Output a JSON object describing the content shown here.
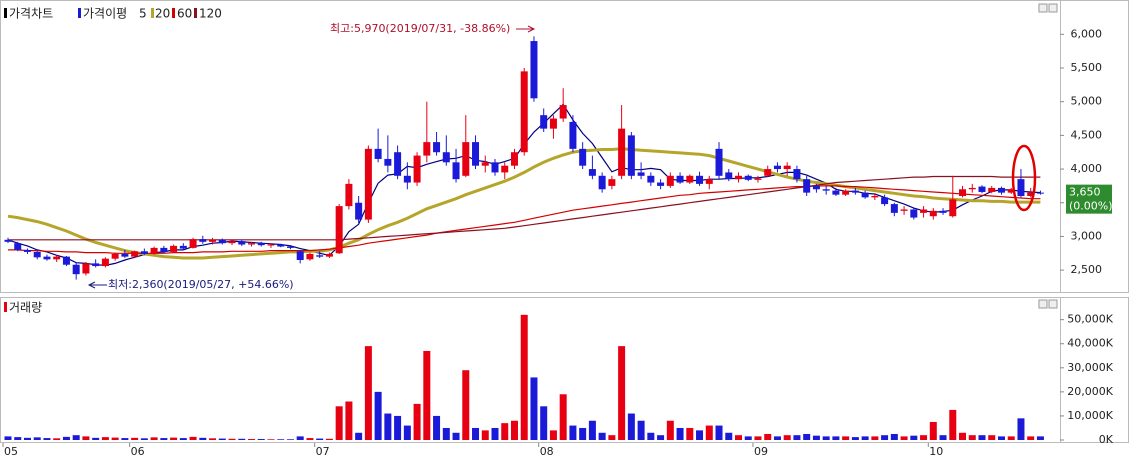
{
  "chart_data": [
    {
      "type": "candlestick",
      "title": "가격차트",
      "up_color": "#e60012",
      "down_color": "#1a1ad8",
      "open": [
        2950,
        2900,
        2800,
        2770,
        2700,
        2660,
        2700,
        2580,
        2450,
        2600,
        2560,
        2670,
        2740,
        2700,
        2780,
        2740,
        2830,
        2770,
        2860,
        2830,
        2960,
        2920,
        2950,
        2900,
        2930,
        2880,
        2900,
        2870,
        2880,
        2850,
        2780,
        2660,
        2720,
        2700,
        2750,
        3450,
        3500,
        3250,
        4300,
        4150,
        4250,
        3900,
        3800,
        4200,
        4400,
        4250,
        4100,
        3900,
        4400,
        4050,
        4100,
        3950,
        4050,
        4250,
        5900,
        4800,
        4600,
        4750,
        4700,
        4300,
        4000,
        3900,
        3750,
        3900,
        4500,
        3950,
        3900,
        3800,
        3750,
        3900,
        3800,
        3900,
        3780,
        4300,
        3950,
        3850,
        3900,
        3840,
        3900,
        4050,
        4000,
        4000,
        3850,
        3750,
        3700,
        3680,
        3620,
        3680,
        3650,
        3580,
        3580,
        3480,
        3380,
        3400,
        3350,
        3300,
        3380,
        3300,
        3600,
        3700,
        3740,
        3660,
        3720,
        3650,
        3850,
        3600,
        3650
      ],
      "high": [
        2980,
        2920,
        2820,
        2790,
        2730,
        2720,
        2710,
        2620,
        2620,
        2660,
        2690,
        2760,
        2800,
        2790,
        2820,
        2850,
        2860,
        2880,
        2900,
        2980,
        3010,
        2980,
        2970,
        2950,
        2950,
        2920,
        2920,
        2900,
        2890,
        2870,
        2800,
        2760,
        2780,
        2760,
        3480,
        3850,
        3600,
        4350,
        4600,
        4500,
        4350,
        4100,
        4250,
        5000,
        4550,
        4500,
        4300,
        4800,
        4500,
        4200,
        4150,
        4100,
        4300,
        5500,
        5970,
        4900,
        4800,
        5200,
        4800,
        4400,
        4200,
        3950,
        3900,
        4950,
        4550,
        4100,
        3950,
        3850,
        3950,
        3950,
        3920,
        3960,
        3900,
        4400,
        4000,
        3950,
        3920,
        3900,
        4050,
        4100,
        4100,
        4050,
        3900,
        3780,
        3750,
        3720,
        3700,
        3720,
        3680,
        3640,
        3620,
        3500,
        3450,
        3420,
        3450,
        3420,
        3420,
        3900,
        3750,
        3780,
        3760,
        3750,
        3740,
        3720,
        4000,
        3720,
        3680
      ],
      "low": [
        2900,
        2780,
        2740,
        2660,
        2640,
        2620,
        2560,
        2360,
        2420,
        2540,
        2540,
        2640,
        2680,
        2680,
        2720,
        2730,
        2750,
        2760,
        2800,
        2820,
        2890,
        2880,
        2880,
        2870,
        2860,
        2850,
        2850,
        2830,
        2840,
        2810,
        2600,
        2640,
        2680,
        2680,
        2740,
        3400,
        3200,
        3200,
        4100,
        3950,
        3850,
        3700,
        3750,
        4100,
        4200,
        4050,
        3800,
        3880,
        4000,
        3950,
        3900,
        3850,
        4000,
        4200,
        5000,
        4550,
        4450,
        4700,
        4250,
        4000,
        3850,
        3650,
        3700,
        3850,
        3850,
        3850,
        3750,
        3700,
        3720,
        3780,
        3780,
        3750,
        3700,
        3850,
        3820,
        3800,
        3820,
        3800,
        3880,
        3950,
        3900,
        3800,
        3600,
        3650,
        3620,
        3600,
        3600,
        3620,
        3560,
        3540,
        3450,
        3300,
        3320,
        3250,
        3280,
        3250,
        3320,
        3280,
        3580,
        3650,
        3640,
        3640,
        3620,
        3630,
        3580,
        3580,
        3620
      ],
      "close": [
        2920,
        2800,
        2770,
        2690,
        2660,
        2700,
        2580,
        2440,
        2600,
        2560,
        2670,
        2740,
        2700,
        2780,
        2740,
        2830,
        2770,
        2860,
        2820,
        2960,
        2920,
        2950,
        2900,
        2930,
        2880,
        2900,
        2870,
        2880,
        2850,
        2830,
        2650,
        2740,
        2700,
        2740,
        3450,
        3780,
        3250,
        4300,
        4150,
        4050,
        3900,
        3800,
        4200,
        4400,
        4250,
        4100,
        3850,
        4400,
        4050,
        4100,
        3950,
        4050,
        4250,
        5450,
        5050,
        4600,
        4750,
        4950,
        4300,
        4050,
        3900,
        3700,
        3850,
        4600,
        3900,
        3900,
        3800,
        3750,
        3900,
        3800,
        3900,
        3780,
        3850,
        3900,
        3850,
        3900,
        3840,
        3860,
        4000,
        4000,
        4050,
        3850,
        3650,
        3700,
        3680,
        3620,
        3680,
        3650,
        3580,
        3600,
        3480,
        3350,
        3400,
        3280,
        3400,
        3380,
        3350,
        3550,
        3700,
        3720,
        3660,
        3720,
        3650,
        3700,
        3600,
        3650,
        3650
      ],
      "moving_averages": {
        "title": "가격이평",
        "series": [
          {
            "name": "5",
            "color": "#00007f",
            "values": [
              2950,
              2900,
              2860,
              2800,
              2770,
              2720,
              2680,
              2610,
              2600,
              2580,
              2570,
              2600,
              2650,
              2690,
              2730,
              2760,
              2770,
              2800,
              2800,
              2850,
              2870,
              2900,
              2910,
              2930,
              2920,
              2910,
              2900,
              2890,
              2880,
              2860,
              2820,
              2790,
              2750,
              2720,
              2860,
              3070,
              3180,
              3500,
              3790,
              3910,
              3930,
              4040,
              4020,
              4070,
              4110,
              4150,
              4160,
              4200,
              4130,
              4110,
              4070,
              4110,
              4160,
              4370,
              4550,
              4680,
              4820,
              4960,
              4730,
              4530,
              4380,
              4170,
              3960,
              4020,
              3990,
              3990,
              4010,
              3990,
              3850,
              3830,
              3830,
              3830,
              3850,
              3850,
              3860,
              3860,
              3870,
              3870,
              3890,
              3920,
              3950,
              3950,
              3910,
              3850,
              3790,
              3700,
              3670,
              3670,
              3640,
              3630,
              3580,
              3530,
              3480,
              3420,
              3380,
              3360,
              3370,
              3390,
              3470,
              3540,
              3600,
              3670,
              3690,
              3690,
              3670,
              3660,
              3650
            ]
          },
          {
            "name": "20",
            "color": "#b5a52a",
            "values": [
              3300,
              3280,
              3250,
              3220,
              3180,
              3130,
              3080,
              3020,
              2960,
              2910,
              2870,
              2830,
              2790,
              2760,
              2740,
              2720,
              2700,
              2690,
              2680,
              2680,
              2680,
              2690,
              2700,
              2710,
              2720,
              2730,
              2740,
              2750,
              2760,
              2770,
              2770,
              2780,
              2780,
              2800,
              2840,
              2900,
              2950,
              3030,
              3100,
              3160,
              3210,
              3270,
              3340,
              3410,
              3460,
              3510,
              3560,
              3620,
              3670,
              3720,
              3770,
              3820,
              3880,
              3950,
              4030,
              4100,
              4160,
              4210,
              4250,
              4270,
              4280,
              4290,
              4290,
              4300,
              4290,
              4280,
              4270,
              4260,
              4250,
              4240,
              4230,
              4220,
              4200,
              4160,
              4120,
              4080,
              4040,
              4000,
              3960,
              3920,
              3880,
              3850,
              3820,
              3800,
              3780,
              3760,
              3740,
              3720,
              3700,
              3680,
              3660,
              3640,
              3620,
              3600,
              3590,
              3570,
              3560,
              3550,
              3540,
              3530,
              3530,
              3520,
              3520,
              3510,
              3510,
              3510,
              3510
            ]
          },
          {
            "name": "60",
            "color": "#d40000",
            "values": [
              2800,
              2800,
              2790,
              2790,
              2780,
              2780,
              2770,
              2770,
              2760,
              2760,
              2760,
              2750,
              2750,
              2750,
              2750,
              2750,
              2750,
              2760,
              2760,
              2760,
              2770,
              2770,
              2770,
              2780,
              2780,
              2780,
              2780,
              2790,
              2790,
              2790,
              2790,
              2790,
              2800,
              2810,
              2830,
              2850,
              2870,
              2900,
              2920,
              2940,
              2960,
              2980,
              3000,
              3020,
              3050,
              3070,
              3090,
              3110,
              3130,
              3150,
              3170,
              3190,
              3210,
              3240,
              3270,
              3300,
              3330,
              3360,
              3390,
              3410,
              3430,
              3450,
              3470,
              3490,
              3510,
              3530,
              3550,
              3570,
              3590,
              3610,
              3620,
              3640,
              3650,
              3660,
              3670,
              3680,
              3690,
              3700,
              3710,
              3720,
              3730,
              3740,
              3740,
              3750,
              3750,
              3750,
              3740,
              3740,
              3730,
              3720,
              3710,
              3700,
              3690,
              3680,
              3670,
              3660,
              3650,
              3640,
              3630,
              3620,
              3610,
              3600,
              3590,
              3580,
              3570,
              3560,
              3560
            ]
          },
          {
            "name": "120",
            "color": "#8a1020",
            "values": [
              2950,
              2950,
              2950,
              2950,
              2950,
              2950,
              2950,
              2950,
              2950,
              2950,
              2950,
              2950,
              2950,
              2950,
              2950,
              2950,
              2950,
              2950,
              2950,
              2950,
              2950,
              2950,
              2950,
              2950,
              2950,
              2950,
              2950,
              2950,
              2950,
              2950,
              2950,
              2950,
              2950,
              2950,
              2950,
              2960,
              2970,
              2980,
              2990,
              3000,
              3010,
              3020,
              3030,
              3040,
              3050,
              3060,
              3070,
              3080,
              3090,
              3100,
              3110,
              3120,
              3140,
              3160,
              3180,
              3200,
              3220,
              3240,
              3260,
              3280,
              3300,
              3320,
              3340,
              3360,
              3380,
              3400,
              3420,
              3440,
              3460,
              3480,
              3500,
              3520,
              3540,
              3560,
              3580,
              3600,
              3620,
              3640,
              3660,
              3680,
              3700,
              3720,
              3740,
              3760,
              3780,
              3800,
              3810,
              3820,
              3830,
              3840,
              3850,
              3860,
              3870,
              3880,
              3880,
              3890,
              3890,
              3890,
              3890,
              3890,
              3890,
              3890,
              3880,
              3880,
              3880,
              3880,
              3880
            ]
          }
        ]
      },
      "ylim": [
        2190,
        6450
      ],
      "yticks": [
        {
          "value": 6000,
          "label": "6,000"
        },
        {
          "value": 5500,
          "label": "5,500"
        },
        {
          "value": 5000,
          "label": "5,000"
        },
        {
          "value": 4500,
          "label": "4,500"
        },
        {
          "value": 4000,
          "label": "4,000"
        },
        {
          "value": 3500,
          "label": "3,500"
        },
        {
          "value": 3000,
          "label": "3,000"
        },
        {
          "value": 2500,
          "label": "2,500"
        }
      ],
      "annotations": [
        "최고:5,970(2019/07/31, -38.86%)",
        "최저:2,360(2019/05/27, +54.66%)"
      ],
      "last_price": {
        "value": 3650,
        "label": "3,650",
        "change": "(0.00%)",
        "color": "#2e8b2e"
      }
    },
    {
      "type": "bar",
      "title": "거래량",
      "up_color": "#e60012",
      "down_color": "#1a1ad8",
      "categories": [
        "05",
        null,
        null,
        null,
        null,
        null,
        null,
        null,
        null,
        null,
        null,
        null,
        null,
        "06",
        null,
        null,
        null,
        null,
        null,
        null,
        null,
        null,
        null,
        null,
        null,
        null,
        null,
        null,
        null,
        null,
        null,
        null,
        "07",
        null,
        null,
        null,
        null,
        null,
        null,
        null,
        null,
        null,
        null,
        null,
        null,
        null,
        null,
        null,
        null,
        null,
        null,
        null,
        null,
        null,
        null,
        "08",
        null,
        null,
        null,
        null,
        null,
        null,
        null,
        null,
        null,
        null,
        null,
        null,
        null,
        null,
        null,
        null,
        null,
        null,
        null,
        null,
        null,
        "09",
        null,
        null,
        null,
        null,
        null,
        null,
        null,
        null,
        null,
        null,
        null,
        null,
        null,
        null,
        null,
        null,
        null,
        "10",
        null,
        null,
        null,
        null,
        null,
        null,
        null,
        null,
        null,
        null,
        null
      ],
      "values": [
        1500,
        1200,
        900,
        1100,
        800,
        700,
        1300,
        2000,
        1500,
        900,
        1200,
        1000,
        800,
        900,
        700,
        1100,
        800,
        1000,
        800,
        1300,
        900,
        700,
        600,
        500,
        500,
        400,
        400,
        300,
        300,
        300,
        1500,
        800,
        600,
        500,
        14000,
        16000,
        3000,
        39000,
        20000,
        11000,
        10000,
        6000,
        15000,
        37000,
        10000,
        5000,
        3000,
        29000,
        5000,
        4000,
        5000,
        7000,
        8000,
        52000,
        26000,
        14000,
        4000,
        19000,
        6000,
        5000,
        8000,
        3000,
        2000,
        39000,
        11000,
        8000,
        3000,
        2000,
        8000,
        5000,
        5000,
        4000,
        6000,
        6000,
        3000,
        2000,
        1500,
        1500,
        2500,
        1500,
        2000,
        2000,
        2500,
        1800,
        1500,
        1500,
        1500,
        1200,
        1500,
        1500,
        2000,
        2500,
        1500,
        1800,
        2000,
        7500,
        2000,
        12500,
        3000,
        2000,
        2000,
        2000,
        1500,
        1500,
        9000,
        1500,
        1500
      ],
      "ylim": [
        0,
        59000
      ],
      "yticks": [
        {
          "value": 50000,
          "label": "50,000K"
        },
        {
          "value": 40000,
          "label": "40,000K"
        },
        {
          "value": 30000,
          "label": "30,000K"
        },
        {
          "value": 20000,
          "label": "20,000K"
        },
        {
          "value": 10000,
          "label": "10,000K"
        },
        {
          "value": 0,
          "label": "0K"
        }
      ]
    }
  ]
}
